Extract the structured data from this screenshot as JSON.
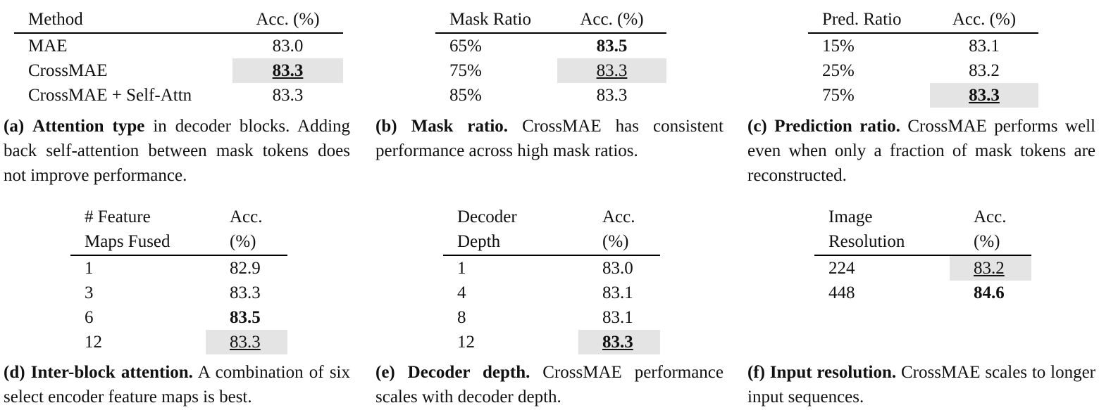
{
  "tables": [
    {
      "id": "a",
      "headers": [
        [
          "Method"
        ],
        [
          "Acc. (%)"
        ]
      ],
      "rows": [
        {
          "k": "MAE",
          "v": "83.0",
          "style": ""
        },
        {
          "k": "CrossMAE",
          "v": "83.3",
          "style": "hl b u"
        },
        {
          "k": "CrossMAE + Self-Attn",
          "v": "83.3",
          "style": ""
        }
      ],
      "caption": {
        "label": "(a)",
        "title": "Attention type",
        "text": " in decoder blocks. Adding back self-attention between mask tokens does not improve performance."
      }
    },
    {
      "id": "b",
      "headers": [
        [
          "Mask Ratio"
        ],
        [
          "Acc. (%)"
        ]
      ],
      "rows": [
        {
          "k": "65%",
          "v": "83.5",
          "style": "b"
        },
        {
          "k": "75%",
          "v": "83.3",
          "style": "hl u"
        },
        {
          "k": "85%",
          "v": "83.3",
          "style": ""
        }
      ],
      "caption": {
        "label": "(b)",
        "title": "Mask ratio.",
        "text": " CrossMAE has consistent performance across high mask ratios."
      }
    },
    {
      "id": "c",
      "headers": [
        [
          "Pred. Ratio"
        ],
        [
          "Acc. (%)"
        ]
      ],
      "rows": [
        {
          "k": "15%",
          "v": "83.1",
          "style": ""
        },
        {
          "k": "25%",
          "v": "83.2",
          "style": ""
        },
        {
          "k": "75%",
          "v": "83.3",
          "style": "hl b u"
        }
      ],
      "caption": {
        "label": "(c)",
        "title": "Prediction ratio.",
        "text": " CrossMAE performs well even when only a fraction of mask tokens are reconstructed."
      }
    },
    {
      "id": "d",
      "headers": [
        [
          "# Feature",
          "Maps Fused"
        ],
        [
          "Acc.",
          "(%)"
        ]
      ],
      "rows": [
        {
          "k": "1",
          "v": "82.9",
          "style": ""
        },
        {
          "k": "3",
          "v": "83.3",
          "style": ""
        },
        {
          "k": "6",
          "v": "83.5",
          "style": "b"
        },
        {
          "k": "12",
          "v": "83.3",
          "style": "hl u"
        }
      ],
      "caption": {
        "label": "(d)",
        "title": "Inter-block attention.",
        "text": " A combination of six select encoder feature maps is best."
      }
    },
    {
      "id": "e",
      "headers": [
        [
          "Decoder",
          "Depth"
        ],
        [
          "Acc.",
          "(%)"
        ]
      ],
      "rows": [
        {
          "k": "1",
          "v": "83.0",
          "style": ""
        },
        {
          "k": "4",
          "v": "83.1",
          "style": ""
        },
        {
          "k": "8",
          "v": "83.1",
          "style": ""
        },
        {
          "k": "12",
          "v": "83.3",
          "style": "hl b u"
        }
      ],
      "caption": {
        "label": "(e)",
        "title": "Decoder depth.",
        "text": " CrossMAE performance scales with decoder depth."
      }
    },
    {
      "id": "f",
      "headers": [
        [
          "Image",
          "Resolution"
        ],
        [
          "Acc.",
          "(%)"
        ]
      ],
      "rows": [
        {
          "k": "224",
          "v": "83.2",
          "style": "hl u"
        },
        {
          "k": "448",
          "v": "84.6",
          "style": "b"
        }
      ],
      "caption": {
        "label": "(f)",
        "title": "Input resolution.",
        "text": " CrossMAE scales to longer input sequences."
      }
    }
  ]
}
